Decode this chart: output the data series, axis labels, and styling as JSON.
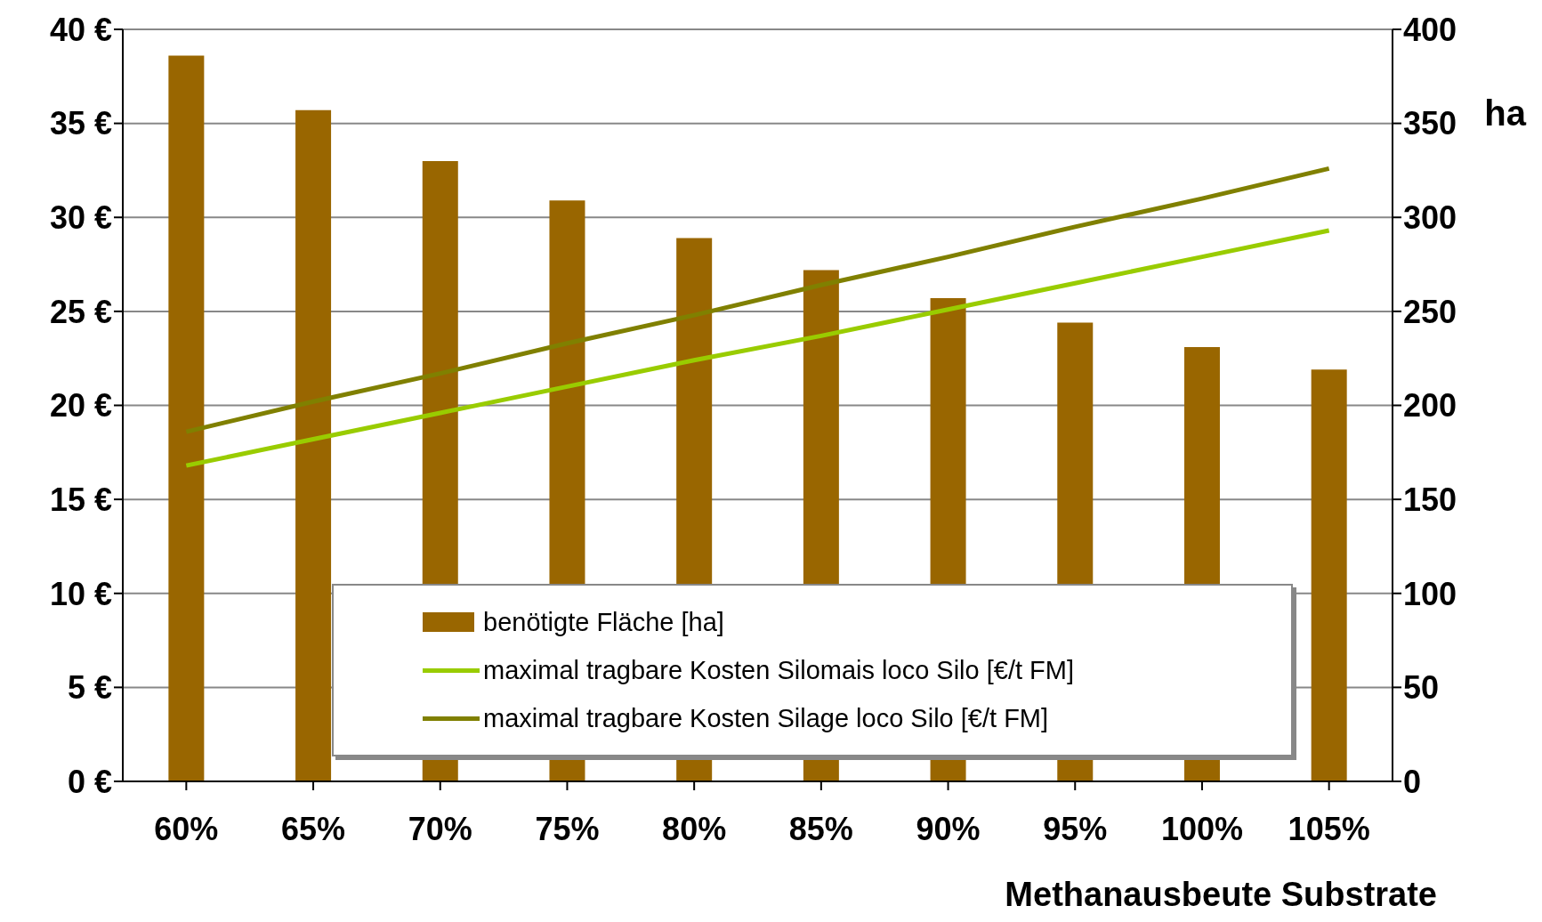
{
  "chart_data": {
    "type": "bar",
    "categories": [
      "60%",
      "65%",
      "70%",
      "75%",
      "80%",
      "85%",
      "90%",
      "95%",
      "100%",
      "105%"
    ],
    "series": [
      {
        "name": "benötigte Fläche [ha]",
        "axis": "y2",
        "color": "#996600",
        "values": [
          386,
          357,
          330,
          309,
          289,
          272,
          257,
          244,
          231,
          219
        ]
      },
      {
        "name": "maximal tragbare Kosten Silomais loco Silo [€/t FM]",
        "type": "line",
        "axis": "y",
        "color": "#99cc00",
        "values": [
          16.8,
          18.2,
          19.6,
          21.0,
          22.4,
          23.7,
          25.1,
          26.5,
          27.9,
          29.3
        ]
      },
      {
        "name": "maximal tragbare Kosten Silage loco Silo [€/t FM]",
        "type": "line",
        "axis": "y",
        "color": "#808000",
        "values": [
          18.6,
          20.2,
          21.7,
          23.3,
          24.8,
          26.4,
          27.9,
          29.5,
          31.0,
          32.6
        ]
      }
    ],
    "ylim": [
      0,
      40
    ],
    "yticks": [
      {
        "value": 0,
        "label": "0 €"
      },
      {
        "value": 5,
        "label": "5 €"
      },
      {
        "value": 10,
        "label": "10 €"
      },
      {
        "value": 15,
        "label": "15 €"
      },
      {
        "value": 20,
        "label": "20 €"
      },
      {
        "value": 25,
        "label": "25 €"
      },
      {
        "value": 30,
        "label": "30 €"
      },
      {
        "value": 35,
        "label": "35 €"
      },
      {
        "value": 40,
        "label": "40 €"
      }
    ],
    "y2lim": [
      0,
      400
    ],
    "y2ticks": [
      0,
      50,
      100,
      150,
      200,
      250,
      300,
      350,
      400
    ],
    "y2label": "ha",
    "xlabel": "Methanausbeute Substrate",
    "grid": "y",
    "legend": "bottom",
    "marker": "none",
    "line_style": "solid"
  }
}
